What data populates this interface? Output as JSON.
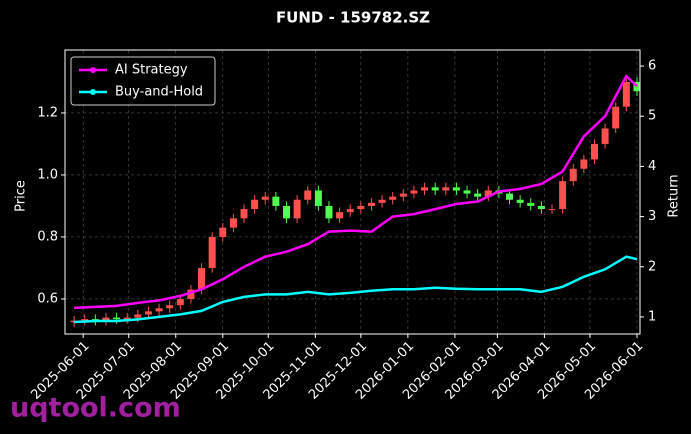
{
  "chart_data": {
    "type": "candlestick",
    "title": "FUND - 159782.SZ",
    "y_label": "Price",
    "y2_label": "Return",
    "watermark": "uqtool.com",
    "grid": true,
    "legend": "upper left",
    "xlim": [
      "2025-05-20",
      "2026-06-03"
    ],
    "xticks": [
      "2025-06-01",
      "2025-07-01",
      "2025-08-01",
      "2025-09-01",
      "2025-10-01",
      "2025-11-01",
      "2025-12-01",
      "2026-01-01",
      "2026-02-01",
      "2026-03-01",
      "2026-04-01",
      "2026-05-01",
      "2026-06-01"
    ],
    "ylim": [
      0.487,
      1.403
    ],
    "yticks": [
      0.6,
      0.8,
      {
        "value": 1,
        "label": "1.0"
      },
      1.2
    ],
    "y2lim": [
      0.66,
      6.32
    ],
    "y2ticks": [
      1,
      2,
      3,
      4,
      5,
      6
    ],
    "up_color": "#ff5050",
    "down_color": "#50ff50",
    "x": [
      "2025-05-26",
      "2025-06-02",
      "2025-06-09",
      "2025-06-16",
      "2025-06-23",
      "2025-06-30",
      "2025-07-07",
      "2025-07-14",
      "2025-07-21",
      "2025-07-28",
      "2025-08-04",
      "2025-08-11",
      "2025-08-18",
      "2025-08-25",
      "2025-09-01",
      "2025-09-08",
      "2025-09-15",
      "2025-09-22",
      "2025-09-29",
      "2025-10-06",
      "2025-10-13",
      "2025-10-20",
      "2025-10-27",
      "2025-11-03",
      "2025-11-10",
      "2025-11-17",
      "2025-11-24",
      "2025-12-01",
      "2025-12-08",
      "2025-12-15",
      "2025-12-22",
      "2025-12-29",
      "2026-01-05",
      "2026-01-12",
      "2026-01-19",
      "2026-01-26",
      "2026-02-02",
      "2026-02-09",
      "2026-02-16",
      "2026-02-23",
      "2026-03-02",
      "2026-03-09",
      "2026-03-16",
      "2026-03-23",
      "2026-03-30",
      "2026-04-06",
      "2026-04-13",
      "2026-04-20",
      "2026-04-27",
      "2026-05-04",
      "2026-05-11",
      "2026-05-18",
      "2026-05-25",
      "2026-06-01"
    ],
    "open": [
      0.525,
      0.53,
      0.535,
      0.53,
      0.54,
      0.535,
      0.54,
      0.55,
      0.56,
      0.57,
      0.58,
      0.6,
      0.63,
      0.7,
      0.8,
      0.83,
      0.86,
      0.89,
      0.92,
      0.93,
      0.9,
      0.86,
      0.92,
      0.95,
      0.9,
      0.86,
      0.88,
      0.89,
      0.9,
      0.91,
      0.92,
      0.93,
      0.94,
      0.95,
      0.96,
      0.95,
      0.96,
      0.95,
      0.94,
      0.93,
      0.95,
      0.94,
      0.92,
      0.91,
      0.9,
      0.89,
      0.89,
      0.98,
      1.02,
      1.05,
      1.1,
      1.15,
      1.22,
      1.3
    ],
    "high": [
      0.545,
      0.55,
      0.55,
      0.555,
      0.555,
      0.555,
      0.565,
      0.575,
      0.585,
      0.595,
      0.615,
      0.645,
      0.715,
      0.815,
      0.845,
      0.875,
      0.905,
      0.935,
      0.945,
      0.945,
      0.915,
      0.935,
      0.965,
      0.965,
      0.915,
      0.895,
      0.905,
      0.915,
      0.925,
      0.935,
      0.945,
      0.955,
      0.965,
      0.975,
      0.975,
      0.975,
      0.975,
      0.965,
      0.955,
      0.965,
      0.965,
      0.955,
      0.935,
      0.925,
      0.915,
      0.905,
      0.995,
      1.035,
      1.065,
      1.115,
      1.165,
      1.235,
      1.315,
      1.315
    ],
    "low": [
      0.51,
      0.515,
      0.515,
      0.515,
      0.52,
      0.52,
      0.525,
      0.535,
      0.545,
      0.555,
      0.565,
      0.585,
      0.615,
      0.685,
      0.785,
      0.815,
      0.845,
      0.875,
      0.905,
      0.885,
      0.845,
      0.845,
      0.905,
      0.885,
      0.845,
      0.845,
      0.865,
      0.875,
      0.885,
      0.895,
      0.905,
      0.915,
      0.925,
      0.935,
      0.935,
      0.935,
      0.935,
      0.925,
      0.915,
      0.915,
      0.925,
      0.905,
      0.895,
      0.885,
      0.875,
      0.875,
      0.875,
      0.965,
      1.005,
      1.035,
      1.085,
      1.135,
      1.205,
      1.255
    ],
    "close": [
      0.53,
      0.535,
      0.53,
      0.54,
      0.535,
      0.54,
      0.55,
      0.56,
      0.57,
      0.58,
      0.6,
      0.63,
      0.7,
      0.8,
      0.83,
      0.86,
      0.89,
      0.92,
      0.93,
      0.9,
      0.86,
      0.92,
      0.95,
      0.9,
      0.86,
      0.88,
      0.89,
      0.9,
      0.91,
      0.92,
      0.93,
      0.94,
      0.95,
      0.96,
      0.95,
      0.96,
      0.95,
      0.94,
      0.93,
      0.95,
      0.94,
      0.92,
      0.91,
      0.9,
      0.89,
      0.89,
      0.98,
      1.02,
      1.05,
      1.1,
      1.15,
      1.22,
      1.3,
      1.27
    ],
    "series": [
      {
        "name": "AI Strategy",
        "color": "#ff00ff",
        "axis": "y2",
        "x": [
          "2025-05-26",
          "2025-06-09",
          "2025-06-23",
          "2025-07-07",
          "2025-07-21",
          "2025-08-04",
          "2025-08-18",
          "2025-09-01",
          "2025-09-15",
          "2025-09-29",
          "2025-10-13",
          "2025-10-27",
          "2025-11-10",
          "2025-11-24",
          "2025-12-08",
          "2025-12-22",
          "2026-01-05",
          "2026-01-19",
          "2026-02-02",
          "2026-02-16",
          "2026-03-02",
          "2026-03-16",
          "2026-03-30",
          "2026-04-13",
          "2026-04-27",
          "2026-05-11",
          "2026-05-25",
          "2026-06-01"
        ],
        "values": [
          1.18,
          1.2,
          1.22,
          1.28,
          1.33,
          1.42,
          1.55,
          1.75,
          2.0,
          2.2,
          2.3,
          2.45,
          2.7,
          2.72,
          2.7,
          3.0,
          3.05,
          3.15,
          3.25,
          3.3,
          3.5,
          3.55,
          3.65,
          3.9,
          4.6,
          5.0,
          5.8,
          5.6
        ]
      },
      {
        "name": "Buy-and-Hold",
        "color": "#00ffff",
        "axis": "y2",
        "x": [
          "2025-05-26",
          "2025-06-09",
          "2025-06-23",
          "2025-07-07",
          "2025-07-21",
          "2025-08-04",
          "2025-08-18",
          "2025-09-01",
          "2025-09-15",
          "2025-09-29",
          "2025-10-13",
          "2025-10-27",
          "2025-11-10",
          "2025-11-24",
          "2025-12-08",
          "2025-12-22",
          "2026-01-05",
          "2026-01-19",
          "2026-02-02",
          "2026-02-16",
          "2026-03-02",
          "2026-03-16",
          "2026-03-30",
          "2026-04-13",
          "2026-04-27",
          "2026-05-11",
          "2026-05-25",
          "2026-06-01"
        ],
        "values": [
          0.9,
          0.92,
          0.92,
          0.95,
          1.0,
          1.05,
          1.12,
          1.3,
          1.4,
          1.45,
          1.45,
          1.5,
          1.45,
          1.48,
          1.52,
          1.55,
          1.55,
          1.58,
          1.56,
          1.55,
          1.55,
          1.55,
          1.5,
          1.6,
          1.8,
          1.95,
          2.2,
          2.15
        ]
      }
    ]
  }
}
